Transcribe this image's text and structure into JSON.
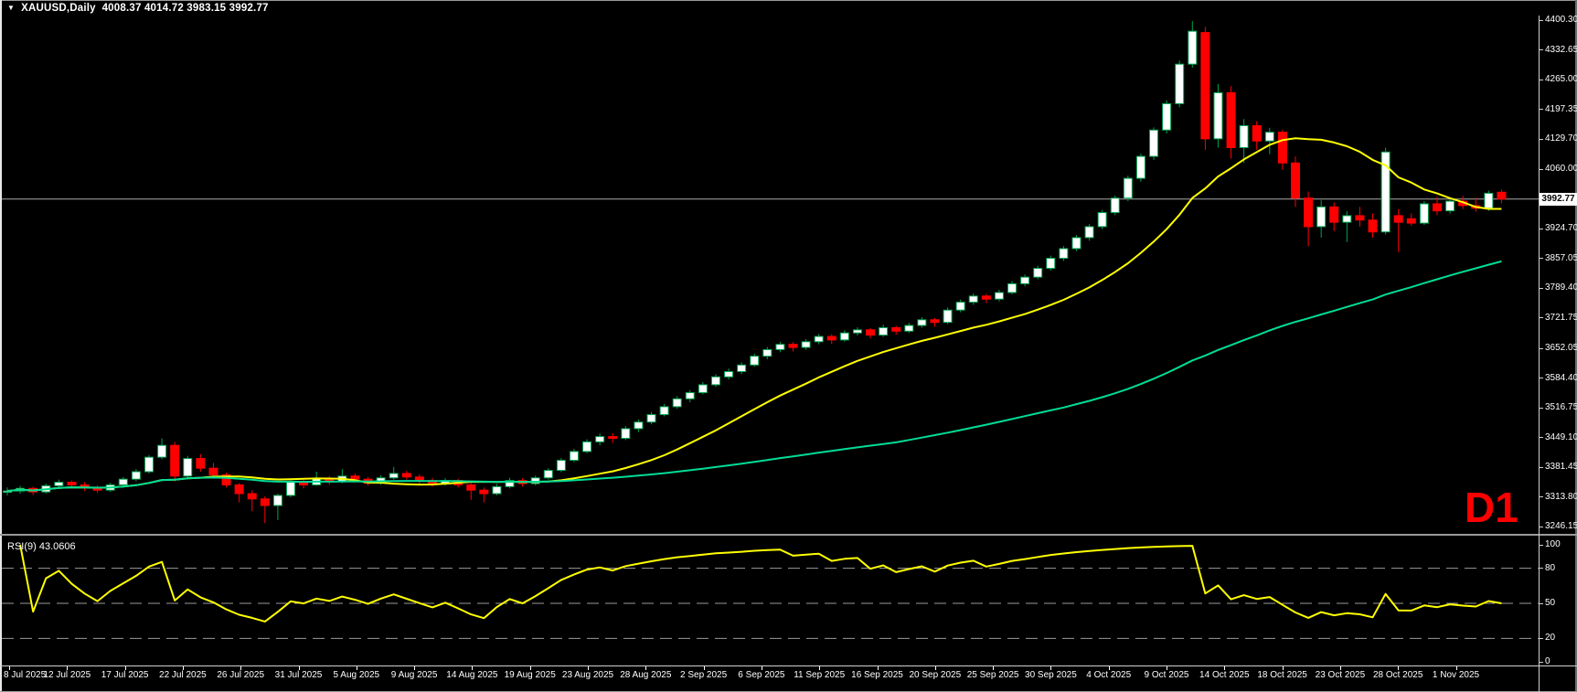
{
  "window": {
    "symbol_timeframe": "XAUUSD,Daily",
    "ohlc_text": "4008.37 4014.72 3983.15 3992.77",
    "dropdown_icon": "▼"
  },
  "colors": {
    "background": "#000000",
    "bull_body": "#ffffff",
    "bull_outline": "#00a651",
    "bear": "#ff0000",
    "ma_fast": "#ffff00",
    "ma_slow": "#00dc96",
    "rsi_line": "#ffff00",
    "level_dash": "#9a9a9a",
    "current_price_line": "#aaaaaa",
    "text": "#ffffff",
    "timeframe_label": "#ff0000"
  },
  "chart_data": {
    "type": "candlestick",
    "title": "XAUUSD,Daily",
    "symbol": "XAUUSD",
    "timeframe": "Daily",
    "timeframe_badge": "D1",
    "ohlc_header": {
      "open": 4008.37,
      "high": 4014.72,
      "low": 3983.15,
      "close": 3992.77
    },
    "price_axis": {
      "ticks": [
        4400.3,
        4332.65,
        4265.0,
        4197.35,
        4129.7,
        4060.0,
        3924.7,
        3857.05,
        3789.4,
        3721.75,
        3652.05,
        3584.4,
        3516.75,
        3449.1,
        3381.45,
        3313.8,
        3246.15
      ],
      "tick_top_value": 4400.3,
      "tick_step": 67.65,
      "current_price": 3992.77,
      "current_price_label": "3992.77"
    },
    "x_axis": {
      "labels": [
        "8 Jul 2025",
        "12 Jul 2025",
        "17 Jul 2025",
        "22 Jul 2025",
        "26 Jul 2025",
        "31 Jul 2025",
        "5 Aug 2025",
        "9 Aug 2025",
        "14 Aug 2025",
        "19 Aug 2025",
        "23 Aug 2025",
        "28 Aug 2025",
        "2 Sep 2025",
        "6 Sep 2025",
        "11 Sep 2025",
        "16 Sep 2025",
        "20 Sep 2025",
        "25 Sep 2025",
        "30 Sep 2025",
        "4 Oct 2025",
        "9 Oct 2025",
        "14 Oct 2025",
        "18 Oct 2025",
        "23 Oct 2025",
        "28 Oct 2025",
        "1 Nov 2025"
      ]
    },
    "candles_ohlc": [
      [
        3325,
        3336,
        3318,
        3328
      ],
      [
        3328,
        3340,
        3322,
        3334
      ],
      [
        3334,
        3338,
        3319,
        3326
      ],
      [
        3326,
        3345,
        3322,
        3340
      ],
      [
        3340,
        3354,
        3336,
        3348
      ],
      [
        3348,
        3352,
        3335,
        3342
      ],
      [
        3342,
        3348,
        3328,
        3336
      ],
      [
        3336,
        3341,
        3324,
        3330
      ],
      [
        3330,
        3347,
        3326,
        3342
      ],
      [
        3342,
        3360,
        3338,
        3355
      ],
      [
        3355,
        3378,
        3350,
        3372
      ],
      [
        3372,
        3410,
        3368,
        3405
      ],
      [
        3405,
        3448,
        3400,
        3432
      ],
      [
        3432,
        3440,
        3350,
        3362
      ],
      [
        3362,
        3408,
        3355,
        3402
      ],
      [
        3402,
        3412,
        3372,
        3380
      ],
      [
        3380,
        3392,
        3358,
        3365
      ],
      [
        3365,
        3370,
        3336,
        3342
      ],
      [
        3342,
        3346,
        3302,
        3322
      ],
      [
        3322,
        3330,
        3282,
        3310
      ],
      [
        3310,
        3316,
        3255,
        3295
      ],
      [
        3295,
        3322,
        3262,
        3318
      ],
      [
        3318,
        3352,
        3314,
        3348
      ],
      [
        3348,
        3355,
        3334,
        3342
      ],
      [
        3342,
        3372,
        3340,
        3356
      ],
      [
        3356,
        3362,
        3342,
        3350
      ],
      [
        3350,
        3378,
        3346,
        3362
      ],
      [
        3362,
        3368,
        3348,
        3355
      ],
      [
        3355,
        3360,
        3340,
        3346
      ],
      [
        3346,
        3364,
        3342,
        3358
      ],
      [
        3358,
        3383,
        3354,
        3368
      ],
      [
        3368,
        3374,
        3354,
        3360
      ],
      [
        3360,
        3366,
        3345,
        3352
      ],
      [
        3352,
        3358,
        3338,
        3344
      ],
      [
        3344,
        3357,
        3340,
        3352
      ],
      [
        3352,
        3356,
        3336,
        3342
      ],
      [
        3342,
        3346,
        3308,
        3330
      ],
      [
        3330,
        3336,
        3302,
        3322
      ],
      [
        3322,
        3344,
        3318,
        3338
      ],
      [
        3338,
        3358,
        3334,
        3352
      ],
      [
        3352,
        3357,
        3338,
        3345
      ],
      [
        3345,
        3363,
        3341,
        3358
      ],
      [
        3358,
        3380,
        3354,
        3375
      ],
      [
        3375,
        3403,
        3371,
        3398
      ],
      [
        3398,
        3424,
        3394,
        3418
      ],
      [
        3418,
        3446,
        3414,
        3440
      ],
      [
        3440,
        3459,
        3432,
        3452
      ],
      [
        3452,
        3460,
        3438,
        3448
      ],
      [
        3448,
        3476,
        3444,
        3470
      ],
      [
        3470,
        3491,
        3462,
        3485
      ],
      [
        3485,
        3508,
        3480,
        3502
      ],
      [
        3502,
        3526,
        3498,
        3520
      ],
      [
        3520,
        3544,
        3515,
        3538
      ],
      [
        3538,
        3558,
        3530,
        3552
      ],
      [
        3552,
        3576,
        3548,
        3570
      ],
      [
        3570,
        3594,
        3565,
        3588
      ],
      [
        3588,
        3607,
        3582,
        3600
      ],
      [
        3600,
        3621,
        3594,
        3615
      ],
      [
        3615,
        3641,
        3611,
        3635
      ],
      [
        3635,
        3656,
        3628,
        3650
      ],
      [
        3650,
        3668,
        3644,
        3662
      ],
      [
        3662,
        3667,
        3646,
        3655
      ],
      [
        3655,
        3674,
        3650,
        3668
      ],
      [
        3668,
        3686,
        3662,
        3680
      ],
      [
        3680,
        3685,
        3663,
        3672
      ],
      [
        3672,
        3694,
        3668,
        3688
      ],
      [
        3688,
        3701,
        3682,
        3695
      ],
      [
        3695,
        3699,
        3676,
        3683
      ],
      [
        3683,
        3707,
        3679,
        3700
      ],
      [
        3700,
        3704,
        3684,
        3692
      ],
      [
        3692,
        3711,
        3688,
        3705
      ],
      [
        3705,
        3724,
        3700,
        3718
      ],
      [
        3718,
        3722,
        3702,
        3712
      ],
      [
        3712,
        3746,
        3708,
        3740
      ],
      [
        3740,
        3764,
        3735,
        3758
      ],
      [
        3758,
        3778,
        3752,
        3772
      ],
      [
        3772,
        3777,
        3756,
        3765
      ],
      [
        3765,
        3786,
        3760,
        3780
      ],
      [
        3780,
        3806,
        3776,
        3800
      ],
      [
        3800,
        3821,
        3794,
        3815
      ],
      [
        3815,
        3841,
        3810,
        3835
      ],
      [
        3835,
        3864,
        3830,
        3858
      ],
      [
        3858,
        3886,
        3852,
        3880
      ],
      [
        3880,
        3911,
        3874,
        3905
      ],
      [
        3905,
        3936,
        3898,
        3930
      ],
      [
        3930,
        3968,
        3924,
        3962
      ],
      [
        3962,
        4001,
        3956,
        3995
      ],
      [
        3995,
        4046,
        3988,
        4040
      ],
      [
        4040,
        4096,
        4032,
        4090
      ],
      [
        4090,
        4156,
        4082,
        4150
      ],
      [
        4150,
        4218,
        4142,
        4210
      ],
      [
        4210,
        4308,
        4202,
        4300
      ],
      [
        4300,
        4398,
        4292,
        4375
      ],
      [
        4372,
        4385,
        4105,
        4130
      ],
      [
        4130,
        4255,
        4110,
        4235
      ],
      [
        4235,
        4250,
        4085,
        4110
      ],
      [
        4110,
        4175,
        4075,
        4160
      ],
      [
        4160,
        4170,
        4105,
        4125
      ],
      [
        4125,
        4155,
        4095,
        4145
      ],
      [
        4145,
        4150,
        4060,
        4075
      ],
      [
        4075,
        4090,
        3975,
        3995
      ],
      [
        3995,
        4010,
        3885,
        3930
      ],
      [
        3930,
        3990,
        3905,
        3975
      ],
      [
        3975,
        3985,
        3920,
        3940
      ],
      [
        3940,
        3965,
        3895,
        3955
      ],
      [
        3955,
        3975,
        3930,
        3945
      ],
      [
        3945,
        3960,
        3905,
        3918
      ],
      [
        3918,
        4110,
        3912,
        4100
      ],
      [
        3955,
        3970,
        3872,
        3940
      ],
      [
        3948,
        3960,
        3932,
        3938
      ],
      [
        3938,
        3988,
        3934,
        3982
      ],
      [
        3982,
        3998,
        3956,
        3966
      ],
      [
        3966,
        3994,
        3960,
        3988
      ],
      [
        3988,
        4000,
        3970,
        3978
      ],
      [
        3978,
        3996,
        3964,
        3972
      ],
      [
        3972,
        4012,
        3966,
        4006
      ],
      [
        4008.37,
        4014.72,
        3983.15,
        3992.77
      ]
    ],
    "overlays": [
      {
        "name": "ma-fast",
        "type": "sma",
        "period": 16,
        "color": "#ffff00"
      },
      {
        "name": "ma-slow",
        "type": "sma",
        "period": 70,
        "color": "#00dc96"
      }
    ],
    "rsi": {
      "label": "RSI(9) 43.0606",
      "period": 9,
      "last_value": 43.0606,
      "levels": [
        80,
        50,
        20
      ],
      "axis_labels": [
        100,
        80,
        50,
        20,
        0
      ],
      "range": [
        0,
        100
      ],
      "color": "#ffff00"
    },
    "legend_position": "none",
    "grid": "off"
  }
}
